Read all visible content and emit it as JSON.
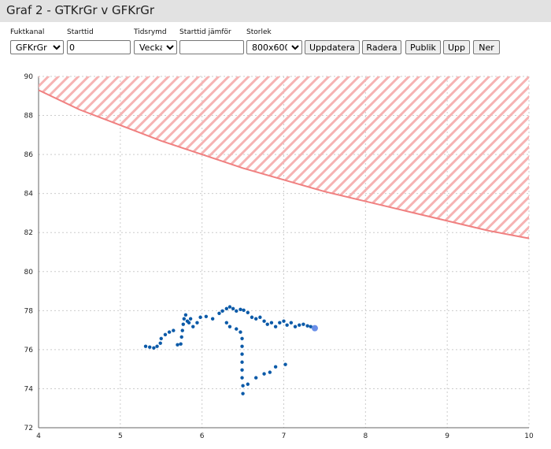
{
  "header": {
    "title": "Graf 2 - GTKrGr v GFKrGr"
  },
  "controls": {
    "labels": [
      "Fuktkanal",
      "Starttid",
      "Tidsrymd",
      "Starttid jämför",
      "Storlek"
    ],
    "fuktkanal": "GFKrGr",
    "starttid": "0",
    "tidsrymd": "Vecka",
    "storlek": "800x600",
    "buttons": [
      "Uppdatera",
      "Radera",
      "Publik",
      "Upp",
      "Ner"
    ]
  },
  "chart_data": {
    "type": "scatter",
    "xlim": [
      4,
      10
    ],
    "ylim": [
      72,
      90
    ],
    "xticks": [
      4,
      5,
      6,
      7,
      8,
      9,
      10
    ],
    "yticks": [
      72,
      74,
      76,
      78,
      80,
      82,
      84,
      86,
      88,
      90
    ],
    "grid": true,
    "series": [
      {
        "type": "line",
        "color": "#f08080",
        "hatch_above": true,
        "x": [
          4,
          4.5,
          5,
          5.5,
          6,
          6.5,
          7,
          7.5,
          8,
          8.5,
          9,
          9.5,
          10
        ],
        "values": [
          89.3,
          88.3,
          87.5,
          86.7,
          86.0,
          85.3,
          84.7,
          84.1,
          83.6,
          83.1,
          82.6,
          82.1,
          81.7
        ]
      },
      {
        "type": "scatter",
        "color": "#0b5aa8",
        "highlight_last_color": "#6a8fe8",
        "x": [
          5.31,
          5.36,
          5.41,
          5.45,
          5.49,
          5.5,
          5.55,
          5.6,
          5.65,
          5.7,
          5.74,
          5.75,
          5.76,
          5.77,
          5.78,
          5.8,
          5.82,
          5.84,
          5.86,
          5.89,
          5.94,
          5.98,
          6.05,
          6.13,
          6.21,
          6.25,
          6.3,
          6.34,
          6.38,
          6.42,
          6.47,
          6.51,
          6.56,
          6.61,
          6.66,
          6.71,
          6.76,
          6.8,
          6.85,
          6.9,
          6.95,
          7.0,
          7.04,
          7.09,
          7.14,
          7.19,
          7.24,
          7.29,
          6.3,
          6.34,
          6.42,
          6.47,
          6.49,
          6.49,
          6.49,
          6.49,
          6.49,
          6.49,
          6.5,
          6.5,
          6.56,
          6.66,
          6.76,
          6.83,
          6.9,
          7.02,
          7.33,
          7.38
        ],
        "values": [
          76.17,
          76.13,
          76.09,
          76.17,
          76.33,
          76.57,
          76.77,
          76.9,
          76.98,
          76.25,
          76.29,
          76.65,
          76.98,
          77.3,
          77.58,
          77.78,
          77.46,
          77.38,
          77.58,
          77.18,
          77.38,
          77.66,
          77.7,
          77.58,
          77.86,
          77.98,
          78.1,
          78.19,
          78.1,
          77.98,
          78.06,
          78.02,
          77.9,
          77.66,
          77.58,
          77.66,
          77.46,
          77.3,
          77.38,
          77.18,
          77.38,
          77.46,
          77.26,
          77.38,
          77.18,
          77.26,
          77.3,
          77.22,
          77.38,
          77.18,
          77.06,
          76.9,
          76.57,
          76.17,
          75.77,
          75.36,
          74.96,
          74.56,
          74.15,
          73.75,
          74.23,
          74.56,
          74.76,
          74.84,
          75.12,
          75.24,
          77.18,
          77.1
        ]
      }
    ]
  }
}
